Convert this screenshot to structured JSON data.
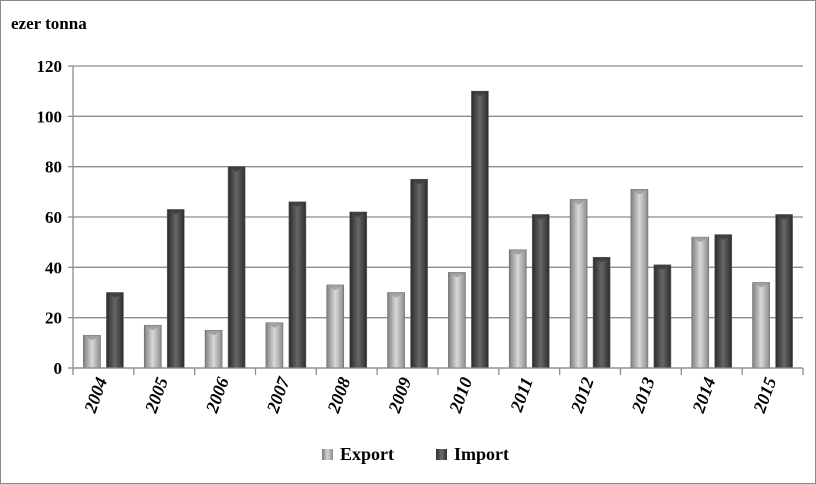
{
  "chart_data": {
    "type": "bar",
    "ylabel": "ezer tonna",
    "ylim": [
      0,
      120
    ],
    "yticks": [
      0,
      20,
      40,
      60,
      80,
      100,
      120
    ],
    "grid": true,
    "legend_position": "bottom",
    "categories": [
      "2004",
      "2005",
      "2006",
      "2007",
      "2008",
      "2009",
      "2010",
      "2011",
      "2012",
      "2013",
      "2014",
      "2015"
    ],
    "series": [
      {
        "name": "Export",
        "color": "#b3b3b3",
        "values": [
          13,
          17,
          15,
          18,
          33,
          30,
          38,
          47,
          67,
          71,
          52,
          34
        ]
      },
      {
        "name": "Import",
        "color": "#4a4a4a",
        "values": [
          30,
          63,
          80,
          66,
          62,
          75,
          110,
          61,
          44,
          41,
          53,
          61
        ]
      }
    ]
  }
}
